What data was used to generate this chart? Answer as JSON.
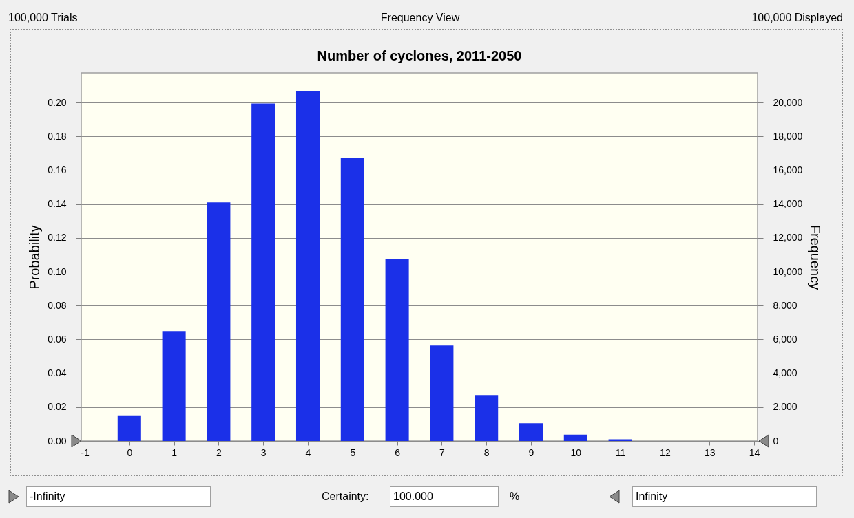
{
  "chart_data": {
    "type": "bar",
    "title": "Number of cyclones, 2011-2050",
    "ylabel": "Probability",
    "y2label": "Frequency",
    "x": [
      0,
      1,
      2,
      3,
      4,
      5,
      6,
      7,
      8,
      9,
      10,
      11
    ],
    "values": [
      0.0152,
      0.065,
      0.141,
      0.1995,
      0.2068,
      0.1675,
      0.1074,
      0.0564,
      0.0272,
      0.0105,
      0.0038,
      0.001
    ],
    "color": "#1b30e8",
    "xlim": [
      -1,
      14
    ],
    "xticks": [
      -1,
      0,
      1,
      2,
      3,
      4,
      5,
      6,
      7,
      8,
      9,
      10,
      11,
      12,
      13,
      14
    ],
    "ylim": [
      0,
      0.2176
    ],
    "yticks": [
      {
        "value": 0,
        "label": "0.00"
      },
      {
        "value": 0.02,
        "label": "0.02"
      },
      {
        "value": 0.04,
        "label": "0.04"
      },
      {
        "value": 0.06,
        "label": "0.06"
      },
      {
        "value": 0.08,
        "label": "0.08"
      },
      {
        "value": 0.1,
        "label": "0.10"
      },
      {
        "value": 0.12,
        "label": "0.12"
      },
      {
        "value": 0.14,
        "label": "0.14"
      },
      {
        "value": 0.16,
        "label": "0.16"
      },
      {
        "value": 0.18,
        "label": "0.18"
      },
      {
        "value": 0.2,
        "label": "0.20"
      }
    ],
    "y2lim": [
      0,
      21760
    ],
    "y2ticks": [
      0,
      {
        "value": 2000,
        "label": "2,000"
      },
      {
        "value": 4000,
        "label": "4,000"
      },
      {
        "value": 6000,
        "label": "6,000"
      },
      {
        "value": 8000,
        "label": "8,000"
      },
      {
        "value": 10000,
        "label": "10,000"
      },
      {
        "value": 12000,
        "label": "12,000"
      },
      {
        "value": 14000,
        "label": "14,000"
      },
      {
        "value": 16000,
        "label": "16,000"
      },
      {
        "value": 18000,
        "label": "18,000"
      },
      {
        "value": 20000,
        "label": "20,000"
      }
    ],
    "grid": "y",
    "annotations": [
      "100,000 Trials",
      "Frequency View",
      "100,000 Displayed",
      "-Infinity",
      "Certainty:",
      "100.000",
      "%",
      "Infinity"
    ]
  }
}
